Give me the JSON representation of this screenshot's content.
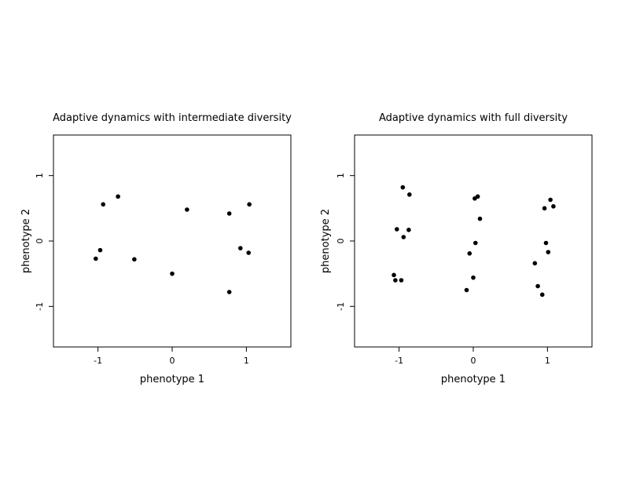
{
  "chart_data": [
    {
      "type": "scatter",
      "title": "Adaptive dynamics with intermediate diversity",
      "xlabel": "phenotype 1",
      "ylabel": "phenotype 2",
      "xlim": [
        -1.6,
        1.6
      ],
      "ylim": [
        -1.62,
        1.62
      ],
      "xticks": [
        -1,
        0,
        1
      ],
      "yticks": [
        -1,
        0,
        1
      ],
      "grid": false,
      "points": [
        {
          "x": -0.93,
          "y": 0.56
        },
        {
          "x": -0.73,
          "y": 0.68
        },
        {
          "x": -0.97,
          "y": -0.14
        },
        {
          "x": -1.03,
          "y": -0.27
        },
        {
          "x": -0.51,
          "y": -0.28
        },
        {
          "x": 0.0,
          "y": -0.5
        },
        {
          "x": 0.2,
          "y": 0.48
        },
        {
          "x": 0.77,
          "y": 0.42
        },
        {
          "x": 1.04,
          "y": 0.56
        },
        {
          "x": 0.92,
          "y": -0.11
        },
        {
          "x": 1.03,
          "y": -0.18
        },
        {
          "x": 0.77,
          "y": -0.78
        }
      ]
    },
    {
      "type": "scatter",
      "title": "Adaptive dynamics with full diversity",
      "xlabel": "phenotype 1",
      "ylabel": "phenotype 2",
      "xlim": [
        -1.6,
        1.6
      ],
      "ylim": [
        -1.62,
        1.62
      ],
      "xticks": [
        -1,
        0,
        1
      ],
      "yticks": [
        -1,
        0,
        1
      ],
      "grid": false,
      "points": [
        {
          "x": -0.95,
          "y": 0.82
        },
        {
          "x": -0.86,
          "y": 0.71
        },
        {
          "x": -1.03,
          "y": 0.18
        },
        {
          "x": -0.87,
          "y": 0.17
        },
        {
          "x": -0.94,
          "y": 0.06
        },
        {
          "x": -1.07,
          "y": -0.52
        },
        {
          "x": -1.05,
          "y": -0.6
        },
        {
          "x": -0.97,
          "y": -0.6
        },
        {
          "x": 0.02,
          "y": 0.65
        },
        {
          "x": 0.06,
          "y": 0.68
        },
        {
          "x": 0.09,
          "y": 0.34
        },
        {
          "x": 0.03,
          "y": -0.03
        },
        {
          "x": -0.05,
          "y": -0.19
        },
        {
          "x": 0.0,
          "y": -0.56
        },
        {
          "x": -0.09,
          "y": -0.75
        },
        {
          "x": 0.96,
          "y": 0.5
        },
        {
          "x": 1.04,
          "y": 0.63
        },
        {
          "x": 1.08,
          "y": 0.53
        },
        {
          "x": 0.98,
          "y": -0.03
        },
        {
          "x": 1.01,
          "y": -0.17
        },
        {
          "x": 0.83,
          "y": -0.34
        },
        {
          "x": 0.87,
          "y": -0.69
        },
        {
          "x": 0.93,
          "y": -0.82
        }
      ]
    }
  ]
}
